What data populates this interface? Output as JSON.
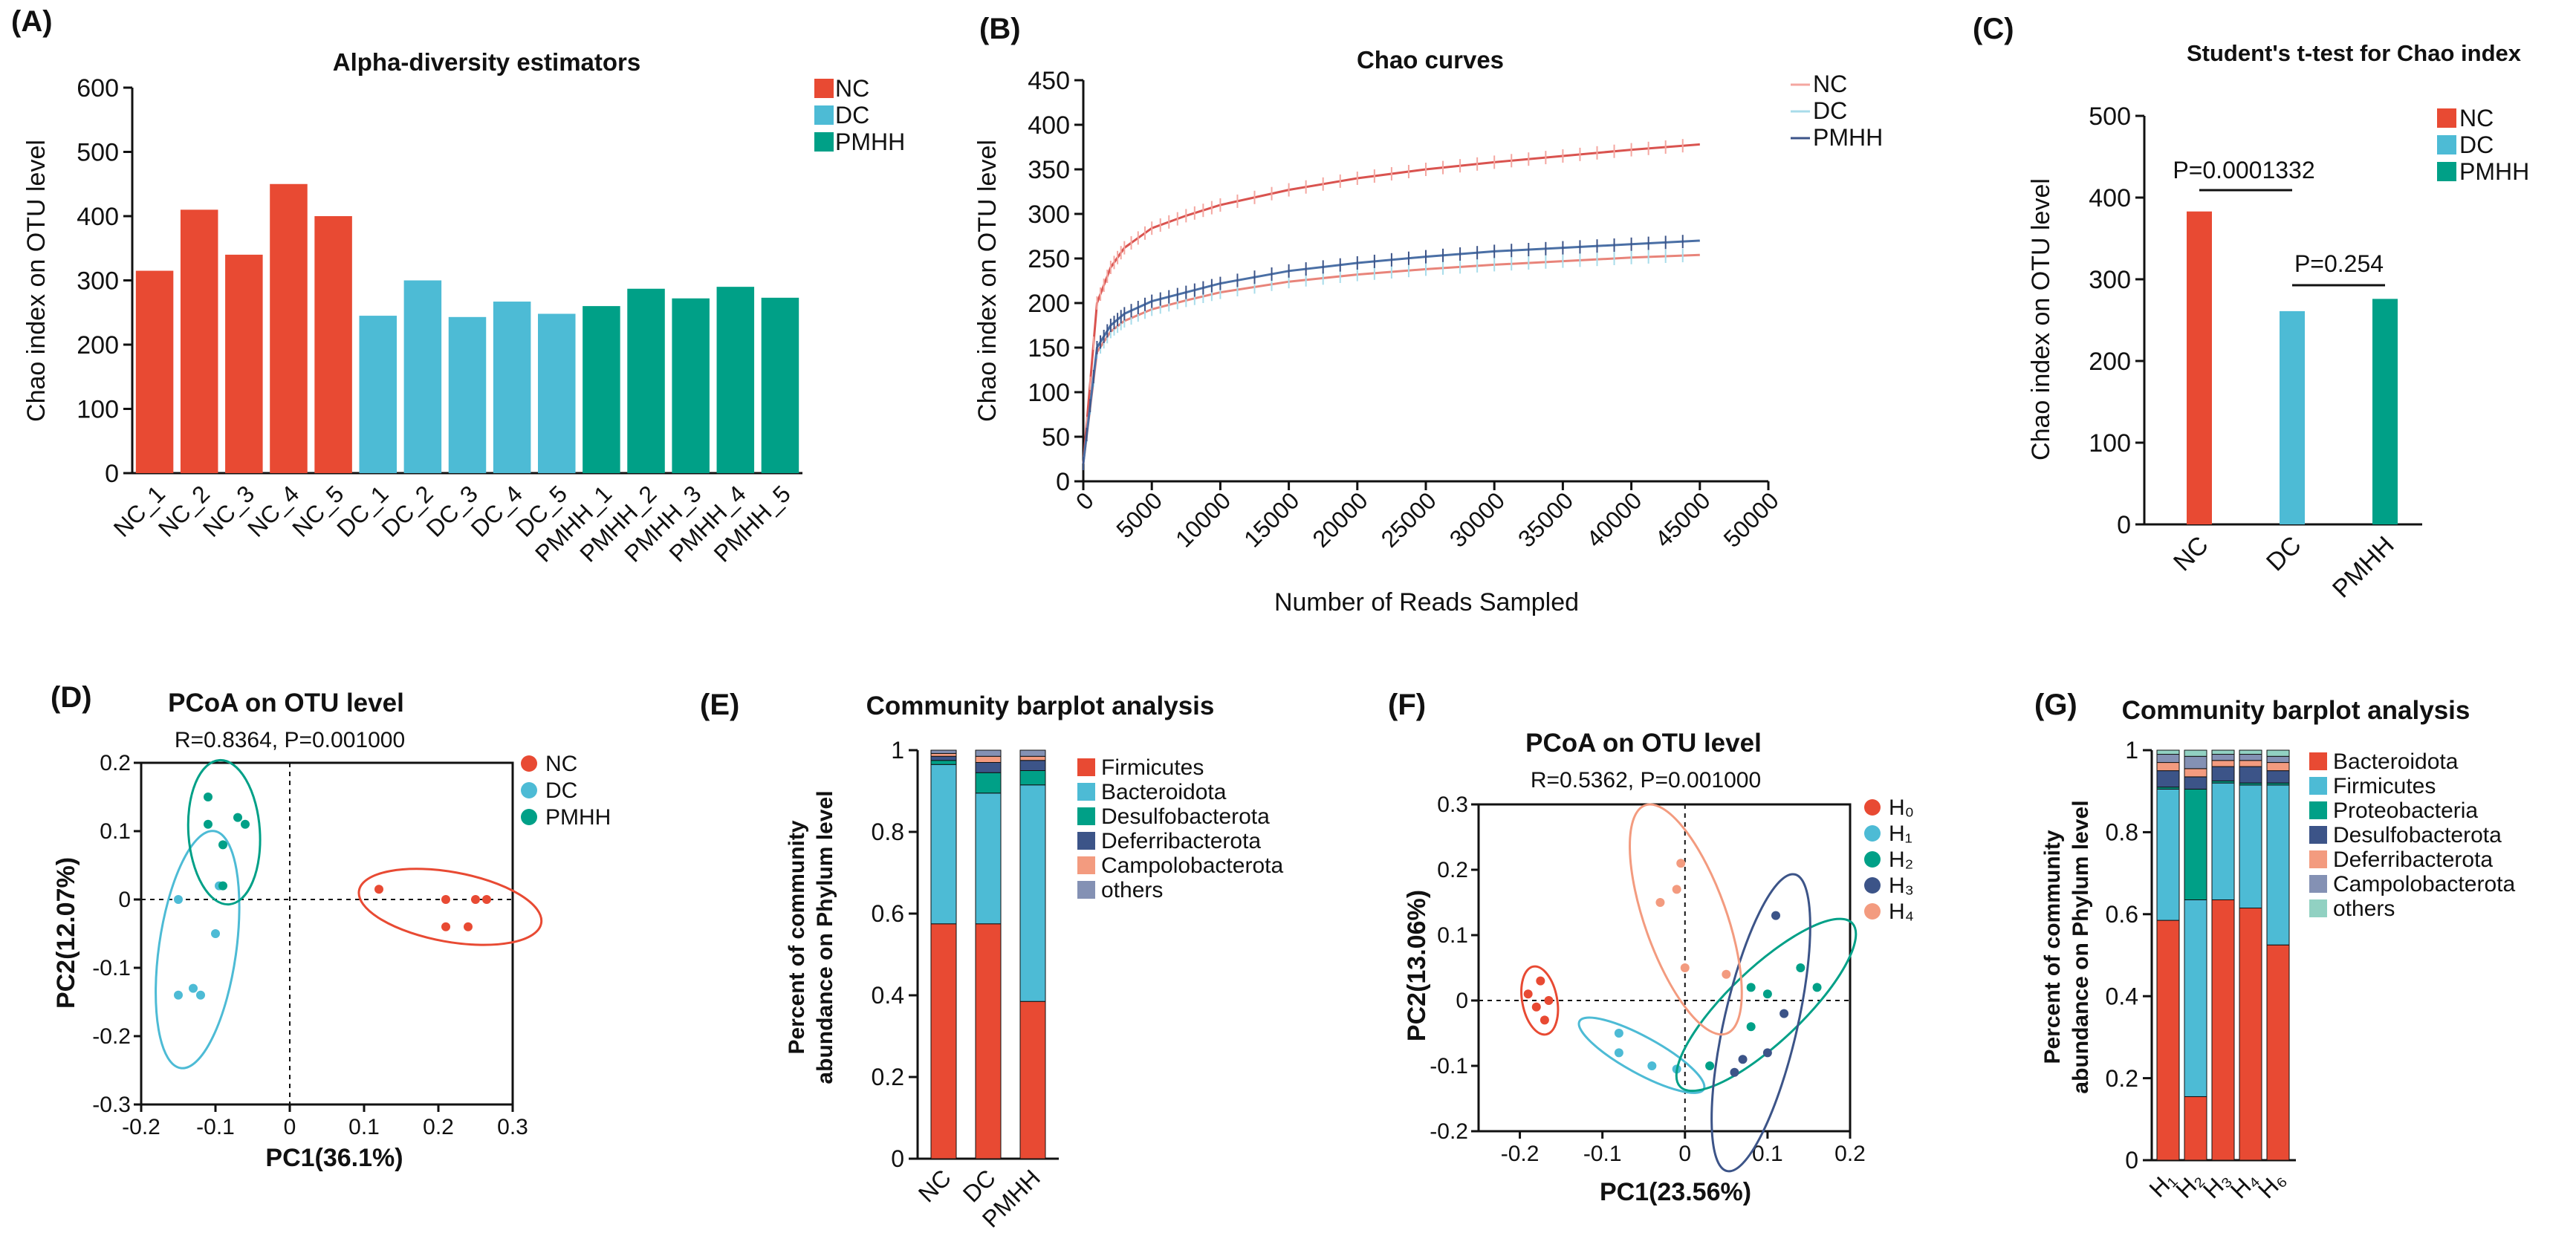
{
  "colors": {
    "NC": "#e84a33",
    "DC": "#4dbbd5",
    "PMHH": "#00a087",
    "H0": "#e84a33",
    "H1": "#4dbbd5",
    "H2": "#00a087",
    "H3": "#3c5488",
    "H4": "#f39b7f"
  },
  "chart_data": [
    {
      "id": "A",
      "panel_label": "(A)",
      "type": "bar",
      "title": "Alpha-diversity estimators",
      "xlabel": "",
      "ylabel": "Chao index on OTU level",
      "ylim": [
        0,
        600
      ],
      "yticks": [
        "0",
        "100",
        "200",
        "300",
        "400",
        "500",
        "600"
      ],
      "categories": [
        "NC_1",
        "NC_2",
        "NC_3",
        "NC_4",
        "NC_5",
        "DC_1",
        "DC_2",
        "DC_3",
        "DC_4",
        "DC_5",
        "PMHH_1",
        "PMHH_2",
        "PMHH_3",
        "PMHH_4",
        "PMHH_5"
      ],
      "values": [
        315,
        410,
        340,
        450,
        400,
        245,
        300,
        243,
        267,
        248,
        260,
        287,
        272,
        290,
        273
      ],
      "groups": [
        "NC",
        "NC",
        "NC",
        "NC",
        "NC",
        "DC",
        "DC",
        "DC",
        "DC",
        "DC",
        "PMHH",
        "PMHH",
        "PMHH",
        "PMHH",
        "PMHH"
      ],
      "legend": [
        "NC",
        "DC",
        "PMHH"
      ]
    },
    {
      "id": "B",
      "panel_label": "(B)",
      "type": "line",
      "title": "Chao curves",
      "xlabel": "Number of Reads Sampled",
      "ylabel": "Chao index on OTU level",
      "xlim": [
        0,
        50000
      ],
      "ylim": [
        0,
        450
      ],
      "xticks": [
        "0",
        "5000",
        "10000",
        "15000",
        "20000",
        "25000",
        "30000",
        "35000",
        "40000",
        "45000",
        "50000"
      ],
      "yticks": [
        "0",
        "50",
        "100",
        "150",
        "200",
        "250",
        "300",
        "350",
        "400",
        "450"
      ],
      "x": [
        0,
        1000,
        2000,
        3000,
        5000,
        7500,
        10000,
        15000,
        20000,
        25000,
        30000,
        35000,
        40000,
        45000
      ],
      "series": [
        {
          "name": "NC",
          "values": [
            20,
            200,
            240,
            262,
            284,
            298,
            310,
            327,
            340,
            350,
            358,
            365,
            372,
            378
          ]
        },
        {
          "name": "DC",
          "values": [
            20,
            145,
            168,
            180,
            193,
            203,
            212,
            224,
            232,
            238,
            243,
            247,
            251,
            254
          ]
        },
        {
          "name": "PMHH",
          "values": [
            20,
            150,
            175,
            188,
            202,
            212,
            222,
            236,
            245,
            252,
            258,
            262,
            266,
            270
          ]
        }
      ],
      "legend": [
        "NC",
        "DC",
        "PMHH"
      ]
    },
    {
      "id": "C",
      "panel_label": "(C)",
      "type": "bar",
      "title": "Student's t-test for Chao index",
      "xlabel": "",
      "ylabel": "Chao index on OTU level",
      "ylim": [
        0,
        500
      ],
      "yticks": [
        "0",
        "100",
        "200",
        "300",
        "400",
        "500"
      ],
      "categories": [
        "NC",
        "DC",
        "PMHH"
      ],
      "values": [
        383,
        261,
        276
      ],
      "annotations": [
        "P=0.0001332",
        "P=0.254"
      ],
      "legend": [
        "NC",
        "DC",
        "PMHH"
      ]
    },
    {
      "id": "D",
      "panel_label": "(D)",
      "type": "scatter",
      "title": "PCoA on OTU level",
      "subtitle": "R=0.8364, P=0.001000",
      "xlabel": "PC1(36.1%)",
      "ylabel": "PC2(12.07%)",
      "xlim": [
        -0.2,
        0.3
      ],
      "ylim": [
        -0.3,
        0.2
      ],
      "xticks": [
        "-0.2",
        "-0.1",
        "0",
        "0.1",
        "0.2",
        "0.3"
      ],
      "yticks": [
        "-0.3",
        "-0.2",
        "-0.1",
        "0",
        "0.1",
        "0.2"
      ],
      "series": [
        {
          "name": "NC",
          "points": [
            [
              0.12,
              0.015
            ],
            [
              0.21,
              0.0
            ],
            [
              0.25,
              0.0
            ],
            [
              0.265,
              0.0
            ],
            [
              0.21,
              -0.04
            ],
            [
              0.24,
              -0.04
            ]
          ]
        },
        {
          "name": "DC",
          "points": [
            [
              -0.15,
              0.0
            ],
            [
              -0.13,
              -0.13
            ],
            [
              -0.12,
              -0.14
            ],
            [
              -0.15,
              -0.14
            ],
            [
              -0.1,
              -0.05
            ],
            [
              -0.095,
              0.02
            ]
          ]
        },
        {
          "name": "PMHH",
          "points": [
            [
              -0.11,
              0.15
            ],
            [
              -0.09,
              0.08
            ],
            [
              -0.07,
              0.12
            ],
            [
              -0.06,
              0.11
            ],
            [
              -0.11,
              0.11
            ],
            [
              -0.09,
              0.02
            ]
          ]
        }
      ],
      "legend": [
        "NC",
        "DC",
        "PMHH"
      ]
    },
    {
      "id": "E",
      "panel_label": "(E)",
      "type": "bar",
      "title": "Community barplot analysis",
      "ylabel": "Percent of community\nabundance on Phylum level",
      "ylim": [
        0,
        1
      ],
      "yticks": [
        "0",
        "0.2",
        "0.4",
        "0.6",
        "0.8",
        "1"
      ],
      "categories": [
        "NC",
        "DC",
        "PMHH"
      ],
      "series": [
        {
          "name": "Firmicutes",
          "values": [
            0.575,
            0.575,
            0.385
          ]
        },
        {
          "name": "Bacteroidota",
          "values": [
            0.39,
            0.32,
            0.53
          ]
        },
        {
          "name": "Desulfobacterota",
          "values": [
            0.01,
            0.05,
            0.035
          ]
        },
        {
          "name": "Deferribacterota",
          "values": [
            0.01,
            0.025,
            0.025
          ]
        },
        {
          "name": "Campolobacterota",
          "values": [
            0.007,
            0.015,
            0.01
          ]
        },
        {
          "name": "others",
          "values": [
            0.008,
            0.015,
            0.015
          ]
        }
      ],
      "series_colors": [
        "#e84a33",
        "#4dbbd5",
        "#00a087",
        "#3c5488",
        "#f39b7f",
        "#8491b4"
      ]
    },
    {
      "id": "F",
      "panel_label": "(F)",
      "type": "scatter",
      "title": "PCoA on OTU level",
      "subtitle": "R=0.5362, P=0.001000",
      "xlabel": "PC1(23.56%)",
      "ylabel": "PC2(13.06%)",
      "xlim": [
        -0.25,
        0.2
      ],
      "ylim": [
        -0.2,
        0.3
      ],
      "xticks": [
        "-0.2",
        "-0.1",
        "0",
        "0.1",
        "0.2"
      ],
      "yticks": [
        "-0.2",
        "-0.1",
        "0",
        "0.1",
        "0.2",
        "0.3"
      ],
      "series": [
        {
          "name": "H₀",
          "points": [
            [
              -0.19,
              0.01
            ],
            [
              -0.175,
              0.03
            ],
            [
              -0.18,
              -0.01
            ],
            [
              -0.17,
              -0.03
            ],
            [
              -0.165,
              0.0
            ]
          ]
        },
        {
          "name": "H₁",
          "points": [
            [
              -0.08,
              -0.05
            ],
            [
              -0.04,
              -0.1
            ],
            [
              -0.01,
              -0.105
            ],
            [
              -0.08,
              -0.08
            ]
          ]
        },
        {
          "name": "H₂",
          "points": [
            [
              0.03,
              -0.1
            ],
            [
              0.08,
              0.02
            ],
            [
              0.14,
              0.05
            ],
            [
              0.16,
              0.02
            ],
            [
              0.1,
              0.01
            ],
            [
              0.08,
              -0.04
            ]
          ]
        },
        {
          "name": "H₃",
          "points": [
            [
              0.11,
              0.13
            ],
            [
              0.12,
              -0.02
            ],
            [
              0.06,
              -0.11
            ],
            [
              0.07,
              -0.09
            ],
            [
              0.1,
              -0.08
            ]
          ]
        },
        {
          "name": "H₄",
          "points": [
            [
              -0.005,
              0.21
            ],
            [
              -0.01,
              0.17
            ],
            [
              -0.03,
              0.15
            ],
            [
              0.0,
              0.05
            ],
            [
              0.05,
              0.04
            ]
          ]
        }
      ],
      "legend": [
        "H₀",
        "H₁",
        "H₂",
        "H₃",
        "H₄"
      ]
    },
    {
      "id": "G",
      "panel_label": "(G)",
      "type": "bar",
      "title": "Community barplot analysis",
      "ylabel": "Percent of community\nabundance on Phylum level",
      "ylim": [
        0,
        1
      ],
      "yticks": [
        "0",
        "0.2",
        "0.4",
        "0.6",
        "0.8",
        "1"
      ],
      "categories": [
        "H₁",
        "H₂",
        "H₃",
        "H₄",
        "H₆"
      ],
      "series": [
        {
          "name": "Bacteroidota",
          "values": [
            0.585,
            0.155,
            0.635,
            0.615,
            0.525
          ]
        },
        {
          "name": "Firmicutes",
          "values": [
            0.32,
            0.48,
            0.285,
            0.3,
            0.39
          ]
        },
        {
          "name": "Proteobacteria",
          "values": [
            0.005,
            0.27,
            0.005,
            0.005,
            0.005
          ]
        },
        {
          "name": "Desulfobacterota",
          "values": [
            0.04,
            0.03,
            0.035,
            0.04,
            0.03
          ]
        },
        {
          "name": "Deferribacterota",
          "values": [
            0.02,
            0.02,
            0.015,
            0.015,
            0.02
          ]
        },
        {
          "name": "Campolobacterota",
          "values": [
            0.02,
            0.03,
            0.015,
            0.015,
            0.015
          ]
        },
        {
          "name": "others",
          "values": [
            0.01,
            0.015,
            0.01,
            0.01,
            0.015
          ]
        }
      ],
      "series_colors": [
        "#e84a33",
        "#4dbbd5",
        "#00a087",
        "#3c5488",
        "#f39b7f",
        "#8491b4",
        "#91d1c2"
      ]
    }
  ]
}
